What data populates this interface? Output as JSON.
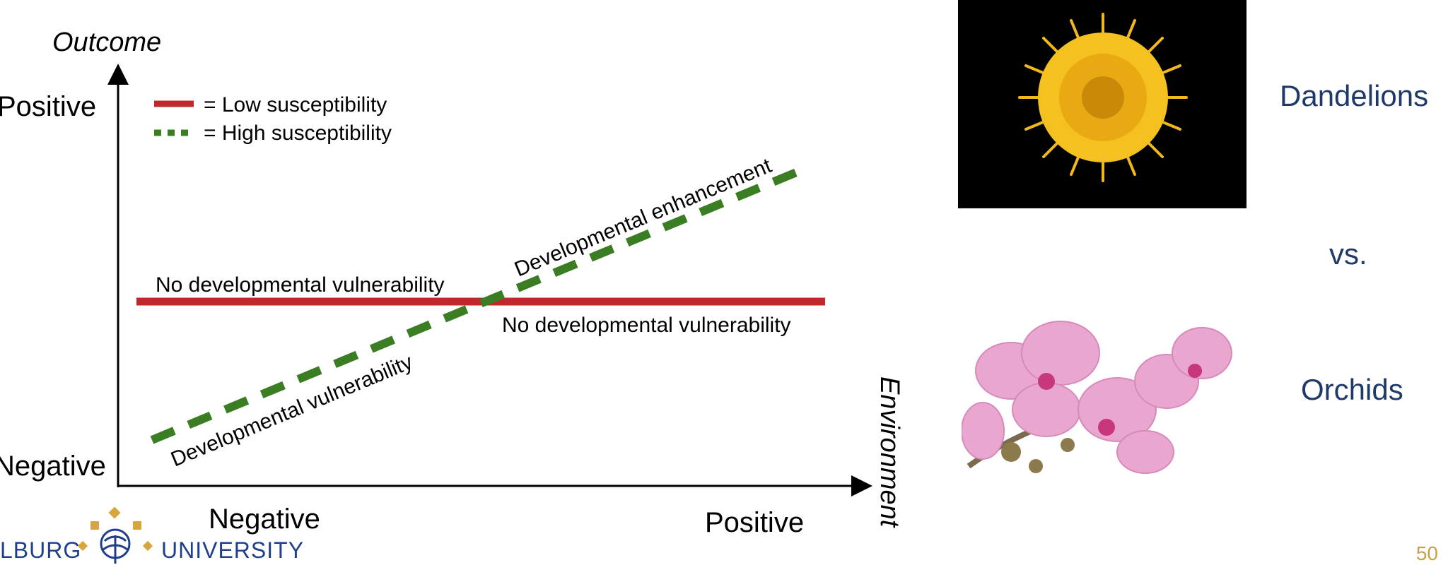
{
  "diagram": {
    "y_axis_title": "Outcome",
    "x_axis_title": "Environment",
    "y_positive": "Positive",
    "y_negative": "Negative",
    "x_negative": "Negative",
    "x_positive": "Positive",
    "legend": [
      {
        "label": "= Low susceptibility",
        "color": "#c0282d",
        "style": "solid"
      },
      {
        "label": "= High susceptibility",
        "color": "#3a7d23",
        "style": "dashed"
      }
    ],
    "annotations": {
      "no_vuln_left": "No developmental vulnerability",
      "no_vuln_right": "No developmental vulnerability",
      "enhancement": "Developmental enhancement",
      "vulnerability": "Developmental vulnerability"
    }
  },
  "side": {
    "dandelions": "Dandelions",
    "vs": "vs.",
    "orchids": "Orchids"
  },
  "logo": {
    "left_text": "LBURG",
    "right_text": "UNIVERSITY"
  },
  "page_number": "50",
  "colors": {
    "low": "#c0282d",
    "high": "#3a7d23",
    "side_text": "#1f3a68",
    "page_num": "#c9a04a",
    "logo_blue": "#1f3f8e",
    "logo_gold": "#d8a43c"
  }
}
